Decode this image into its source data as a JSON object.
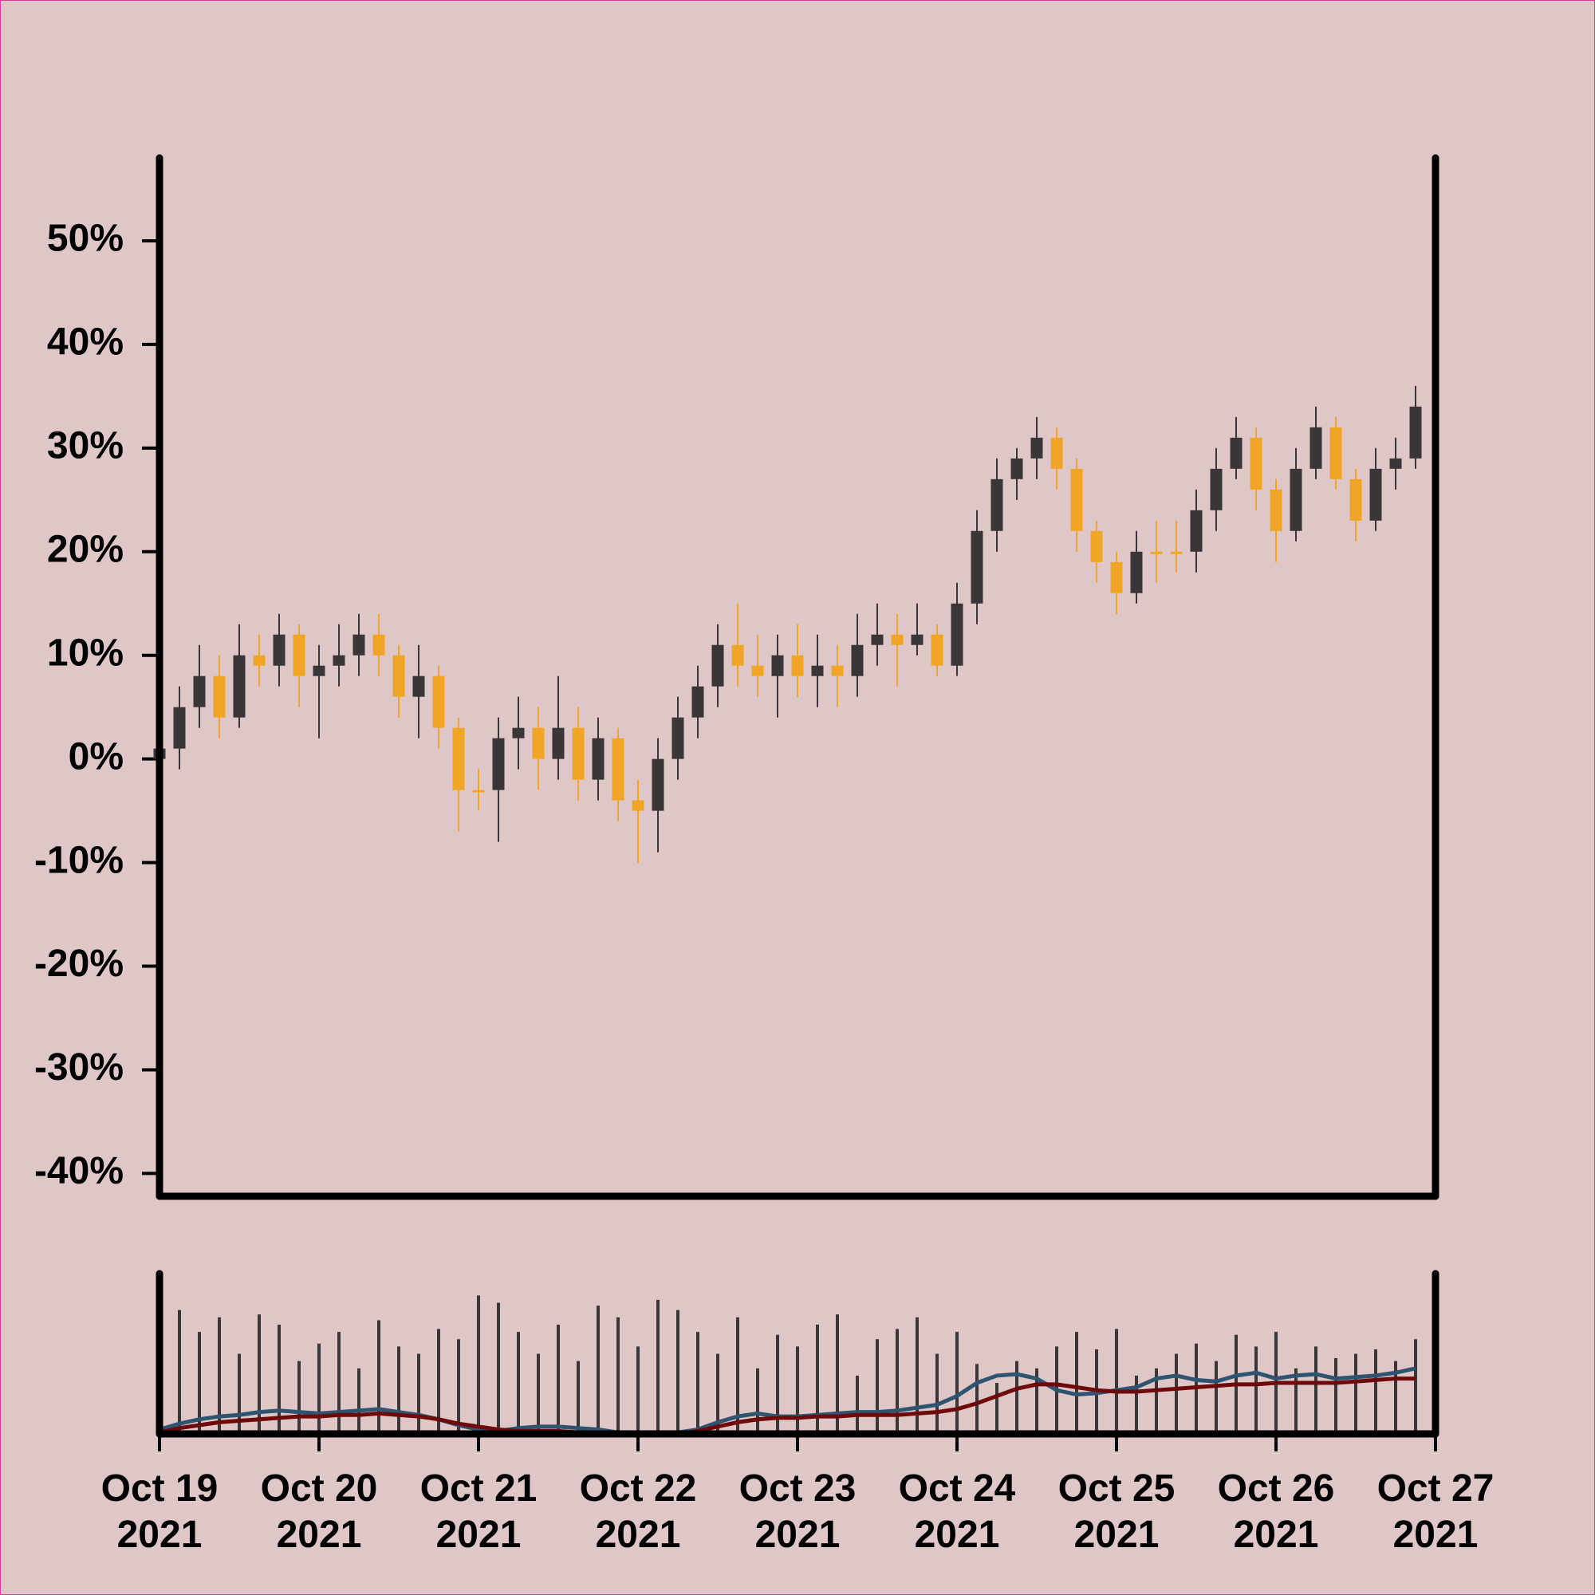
{
  "chart_data": {
    "type": "candlestick",
    "x": [
      0,
      0.125,
      0.25,
      0.375,
      0.5,
      0.625,
      0.75,
      0.875,
      1,
      1.125,
      1.25,
      1.375,
      1.5,
      1.625,
      1.75,
      1.875,
      2,
      2.125,
      2.25,
      2.375,
      2.5,
      2.625,
      2.75,
      2.875,
      3,
      3.125,
      3.25,
      3.375,
      3.5,
      3.625,
      3.75,
      3.875,
      4,
      4.125,
      4.25,
      4.375,
      4.5,
      4.625,
      4.75,
      4.875,
      5,
      5.125,
      5.25,
      5.375,
      5.5,
      5.625,
      5.75,
      5.875,
      6,
      6.125,
      6.25,
      6.375,
      6.5,
      6.625,
      6.75,
      6.875,
      7,
      7.125,
      7.25,
      7.375,
      7.5,
      7.625,
      7.75,
      7.875
    ],
    "open": [
      0,
      1,
      5,
      8,
      4,
      10,
      9,
      12,
      8,
      9,
      10,
      12,
      10,
      6,
      8,
      3,
      -3,
      -3,
      2,
      3,
      0,
      3,
      -2,
      2,
      -4,
      -5,
      0,
      4,
      7,
      11,
      9,
      8,
      10,
      8,
      9,
      8,
      11,
      12,
      11,
      12,
      9,
      15,
      22,
      27,
      29,
      31,
      28,
      22,
      19,
      16,
      20,
      20,
      20,
      24,
      28,
      31,
      26,
      22,
      28,
      32,
      27,
      23,
      28,
      29
    ],
    "high": [
      4,
      7,
      11,
      10,
      13,
      12,
      14,
      13,
      11,
      13,
      14,
      14,
      11,
      11,
      9,
      4,
      -1,
      4,
      6,
      5,
      8,
      5,
      4,
      3,
      -2,
      2,
      6,
      9,
      13,
      15,
      12,
      12,
      13,
      12,
      11,
      14,
      15,
      14,
      15,
      13,
      17,
      24,
      29,
      30,
      33,
      32,
      29,
      23,
      20,
      22,
      23,
      23,
      26,
      30,
      33,
      32,
      27,
      30,
      34,
      33,
      28,
      30,
      31,
      36
    ],
    "low": [
      -2,
      -1,
      3,
      2,
      3,
      7,
      7,
      5,
      2,
      7,
      8,
      8,
      4,
      2,
      1,
      -7,
      -5,
      -8,
      -1,
      -3,
      -2,
      -4,
      -4,
      -6,
      -10,
      -9,
      -2,
      2,
      5,
      7,
      6,
      4,
      6,
      5,
      5,
      6,
      9,
      7,
      10,
      8,
      8,
      13,
      20,
      25,
      27,
      26,
      20,
      17,
      14,
      15,
      17,
      18,
      18,
      22,
      27,
      24,
      19,
      21,
      27,
      26,
      21,
      22,
      26,
      28
    ],
    "close": [
      1,
      5,
      8,
      4,
      10,
      9,
      12,
      8,
      9,
      10,
      12,
      10,
      6,
      8,
      3,
      -3,
      -3,
      2,
      3,
      0,
      3,
      -2,
      2,
      -4,
      -5,
      0,
      4,
      7,
      11,
      9,
      8,
      10,
      8,
      9,
      8,
      11,
      12,
      11,
      12,
      9,
      15,
      22,
      27,
      29,
      31,
      28,
      22,
      19,
      16,
      20,
      20,
      20,
      24,
      28,
      31,
      26,
      22,
      28,
      32,
      27,
      23,
      28,
      29,
      34
    ],
    "up_color": "#3a3536",
    "down_color": "#f0a526",
    "xlim": [
      0,
      8
    ],
    "xticks": [
      {
        "value": 0,
        "label": "Oct 19\n2021"
      },
      {
        "value": 1,
        "label": "Oct 20\n2021"
      },
      {
        "value": 2,
        "label": "Oct 21\n2021"
      },
      {
        "value": 3,
        "label": "Oct 22\n2021"
      },
      {
        "value": 4,
        "label": "Oct 23\n2021"
      },
      {
        "value": 5,
        "label": "Oct 24\n2021"
      },
      {
        "value": 6,
        "label": "Oct 25\n2021"
      },
      {
        "value": 7,
        "label": "Oct 26\n2021"
      },
      {
        "value": 8,
        "label": "Oct 27\n2021"
      }
    ],
    "ylim": [
      -42.2,
      58
    ],
    "yticks": [
      {
        "value": 50,
        "label": "50%"
      },
      {
        "value": 40,
        "label": "40%"
      },
      {
        "value": 30,
        "label": "30%"
      },
      {
        "value": 20,
        "label": "20%"
      },
      {
        "value": 10,
        "label": "10%"
      },
      {
        "value": 0,
        "label": "0%"
      },
      {
        "value": -10,
        "label": "-10%"
      },
      {
        "value": -20,
        "label": "-20%"
      },
      {
        "value": -30,
        "label": "-30%"
      },
      {
        "value": -40,
        "label": "-40%"
      }
    ],
    "volume": {
      "color": "#3a3536",
      "ylim": [
        0,
        110
      ],
      "values": [
        60,
        85,
        70,
        80,
        55,
        82,
        75,
        50,
        62,
        70,
        45,
        78,
        60,
        55,
        72,
        65,
        95,
        90,
        70,
        55,
        75,
        50,
        88,
        80,
        60,
        92,
        85,
        70,
        55,
        80,
        45,
        68,
        60,
        75,
        82,
        40,
        65,
        72,
        80,
        55,
        70,
        48,
        35,
        50,
        45,
        60,
        70,
        58,
        72,
        40,
        45,
        55,
        62,
        50,
        68,
        60,
        70,
        45,
        60,
        52,
        55,
        58,
        50,
        65
      ],
      "series": [
        {
          "color": "#2e5470",
          "values": [
            3,
            7,
            10,
            12,
            13,
            15,
            16,
            15,
            14,
            15,
            16,
            17,
            15,
            13,
            10,
            6,
            3,
            2,
            4,
            5,
            5,
            4,
            3,
            1,
            0,
            0,
            1,
            3,
            8,
            12,
            14,
            12,
            12,
            13,
            14,
            15,
            15,
            16,
            18,
            20,
            26,
            35,
            40,
            41,
            38,
            30,
            27,
            28,
            30,
            32,
            38,
            40,
            37,
            36,
            40,
            42,
            38,
            40,
            41,
            38,
            39,
            40,
            42,
            45
          ]
        },
        {
          "color": "#6e0a0a",
          "values": [
            1,
            4,
            6,
            8,
            9,
            10,
            11,
            12,
            12,
            13,
            13,
            14,
            13,
            12,
            10,
            7,
            5,
            3,
            2,
            2,
            2,
            1,
            1,
            0,
            0,
            0,
            0,
            2,
            5,
            8,
            10,
            11,
            11,
            12,
            12,
            13,
            13,
            13,
            14,
            15,
            17,
            21,
            26,
            31,
            34,
            34,
            32,
            30,
            29,
            29,
            30,
            31,
            32,
            33,
            34,
            34,
            35,
            35,
            35,
            35,
            36,
            37,
            38,
            38
          ]
        }
      ]
    }
  }
}
